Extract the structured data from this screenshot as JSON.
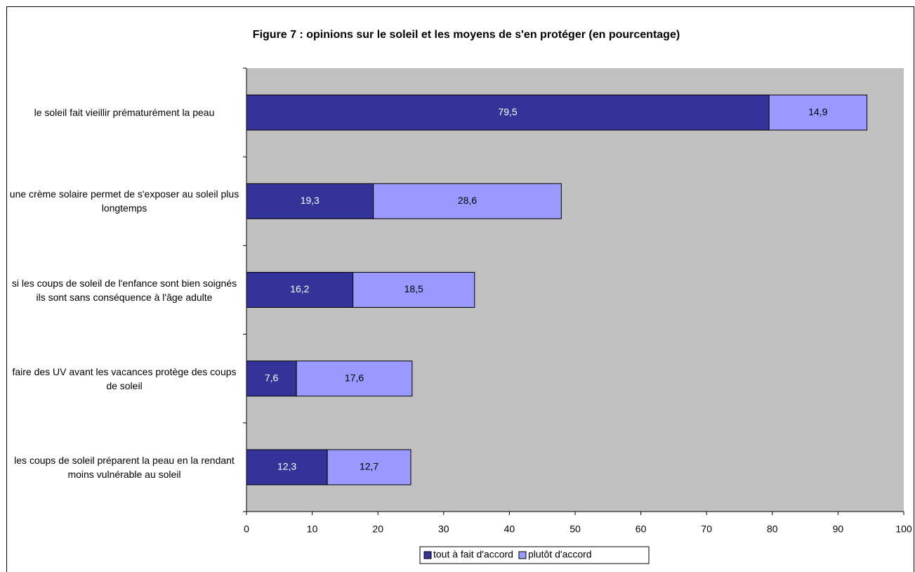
{
  "chart_data": {
    "type": "stacked_bar_horizontal",
    "title": "Figure 7 : opinions sur le soleil et les moyens de s'en protéger (en pourcentage)",
    "categories": [
      "le soleil fait vieillir prématurément la peau",
      "une crème solaire permet de s'exposer au soleil plus longtemps",
      "si les coups de soleil de l'enfance sont bien soignés ils sont sans conséquence à l'âge adulte",
      "faire des UV avant les vacances protège des coups de soleil",
      "les coups de soleil préparent la peau en la rendant moins vulnérable au soleil"
    ],
    "series": [
      {
        "name": "tout à fait d'accord",
        "color": "#333399",
        "values": [
          79.5,
          19.3,
          16.2,
          7.6,
          12.3
        ],
        "value_labels": [
          "79,5",
          "19,3",
          "16,2",
          "7,6",
          "12,3"
        ]
      },
      {
        "name": "plutôt d'accord",
        "color": "#9999ff",
        "values": [
          14.9,
          28.6,
          18.5,
          17.6,
          12.7
        ],
        "value_labels": [
          "14,9",
          "28,6",
          "18,5",
          "17,6",
          "12,7"
        ]
      }
    ],
    "xlim": [
      0,
      100
    ],
    "xticks": [
      0,
      10,
      20,
      30,
      40,
      50,
      60,
      70,
      80,
      90,
      100
    ],
    "plot_background": "#c0c0c0",
    "legend": "bottom"
  }
}
